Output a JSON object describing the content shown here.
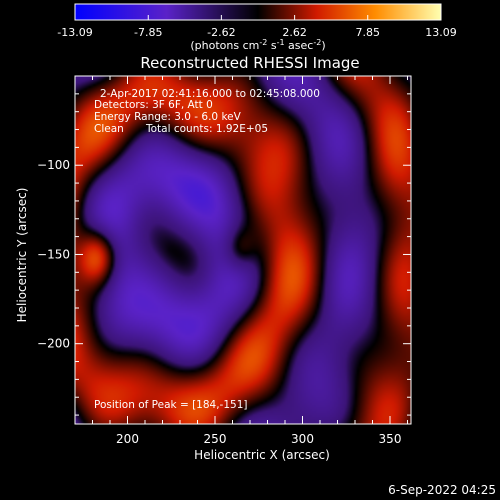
{
  "colorbar": {
    "ticks": [
      "-13.09",
      "-7.85",
      "-2.62",
      "2.62",
      "7.85",
      "13.09"
    ],
    "tick_values": [
      -13.09,
      -7.85,
      -2.62,
      2.62,
      7.85,
      13.09
    ],
    "range": [
      -13.09,
      13.09
    ],
    "units_main": "(photons cm",
    "units_exp1": "-2",
    "units_mid": " s",
    "units_exp2": "-1",
    "units_tail": " asec",
    "units_exp3": "-2",
    "units_close": ")",
    "palette": [
      "#0000ff",
      "#5a22c8",
      "#000000",
      "#d01a00",
      "#ff8c00",
      "#ffffb0"
    ]
  },
  "chart_data": {
    "type": "heatmap",
    "title": "Reconstructed RHESSI Image",
    "xlabel": "Heliocentric X (arcsec)",
    "ylabel": "Heliocentric Y (arcsec)",
    "xlim": [
      170,
      362
    ],
    "ylim": [
      -245,
      -50
    ],
    "xticks": [
      200,
      250,
      300,
      350
    ],
    "xtick_labels": [
      "200",
      "250",
      "300",
      "350"
    ],
    "yticks": [
      -100,
      -150,
      -200
    ],
    "ytick_labels": [
      "−100",
      "−150",
      "−200"
    ],
    "peak": {
      "x": 184,
      "y": -151
    },
    "annotations": {
      "line1": "2-Apr-2017 02:41:16.000 to 02:45:08.000",
      "line2": "Detectors: 3F 6F, Att 0",
      "line3": "Energy Range: 3.0 - 6.0 keV",
      "line4_a": "Clean",
      "line4_b": "Total counts: 1.92E+05",
      "peak_label": "Position of Peak = [184,-151]"
    }
  },
  "footer": {
    "timestamp": "6-Sep-2022 04:25"
  }
}
